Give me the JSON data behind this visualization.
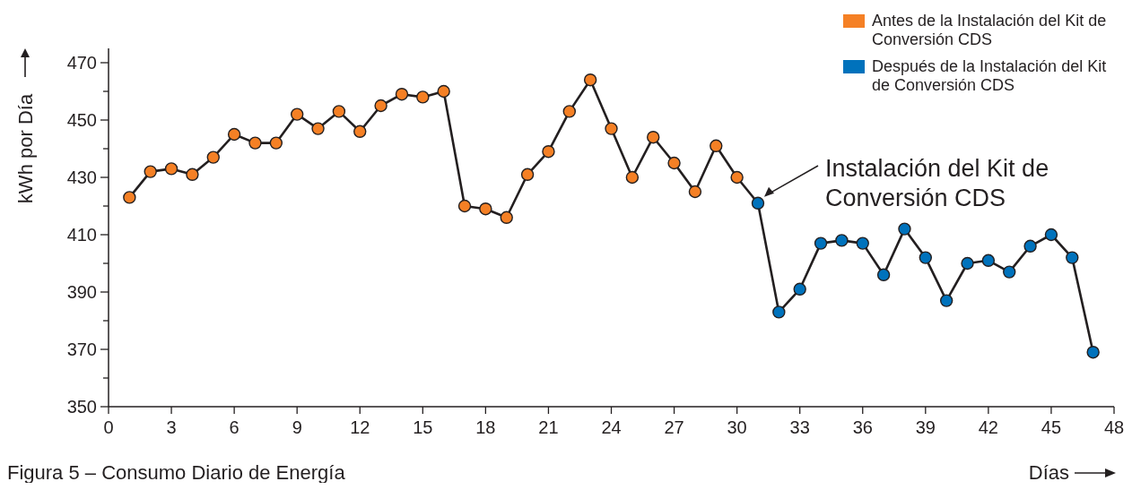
{
  "chart_data": {
    "type": "line",
    "title": "Figura 5 – Consumo Diario de Energía",
    "xlabel": "Días",
    "ylabel": "kWh por Día",
    "x": [
      1,
      2,
      3,
      4,
      5,
      6,
      7,
      8,
      9,
      10,
      11,
      12,
      13,
      14,
      15,
      16,
      17,
      18,
      19,
      20,
      21,
      22,
      23,
      24,
      25,
      26,
      27,
      28,
      29,
      30,
      31,
      32,
      33,
      34,
      35,
      36,
      37,
      38,
      39,
      40,
      41,
      42,
      43,
      44,
      45,
      46,
      47
    ],
    "series": [
      {
        "marker": "none",
        "color": "#231f20",
        "values": [
          423,
          432,
          433,
          431,
          437,
          445,
          442,
          442,
          452,
          447,
          453,
          446,
          455,
          459,
          458,
          460,
          420,
          419,
          416,
          431,
          439,
          453,
          464,
          447,
          430,
          444,
          435,
          425,
          441,
          430,
          421,
          383,
          391,
          407,
          408,
          407,
          396,
          412,
          402,
          387,
          400,
          401,
          397,
          406,
          410,
          402,
          369
        ]
      },
      {
        "type": "scatter",
        "name": "Antes de la Instalación del Kit de Conversión CDS",
        "color": "#f58025",
        "x": [
          1,
          2,
          3,
          4,
          5,
          6,
          7,
          8,
          9,
          10,
          11,
          12,
          13,
          14,
          15,
          16,
          17,
          18,
          19,
          20,
          21,
          22,
          23,
          24,
          25,
          26,
          27,
          28,
          29,
          30
        ],
        "values": [
          423,
          432,
          433,
          431,
          437,
          445,
          442,
          442,
          452,
          447,
          453,
          446,
          455,
          459,
          458,
          460,
          420,
          419,
          416,
          431,
          439,
          453,
          464,
          447,
          430,
          444,
          435,
          425,
          441,
          430
        ]
      },
      {
        "type": "scatter",
        "name": "Después de la Instalación del Kit de Conversión CDS",
        "color": "#0072bc",
        "x": [
          31,
          32,
          33,
          34,
          35,
          36,
          37,
          38,
          39,
          40,
          41,
          42,
          43,
          44,
          45,
          46,
          47
        ],
        "values": [
          421,
          383,
          391,
          407,
          408,
          407,
          396,
          412,
          402,
          387,
          400,
          401,
          397,
          406,
          410,
          402,
          369
        ]
      }
    ],
    "marker": "circle",
    "legend": "top right",
    "grid": false,
    "xlim": [
      0,
      48
    ],
    "xticks": [
      0,
      3,
      6,
      9,
      12,
      15,
      18,
      21,
      24,
      27,
      30,
      33,
      36,
      39,
      42,
      45,
      48
    ],
    "ylim": [
      350,
      475
    ],
    "yticks": [
      350,
      {
        "value": 360,
        "label": null
      },
      370,
      {
        "value": 380,
        "label": null
      },
      390,
      {
        "value": 400,
        "label": null
      },
      410,
      {
        "value": 420,
        "label": null
      },
      430,
      {
        "value": 440,
        "label": null
      },
      450,
      {
        "value": 460,
        "label": null
      },
      470
    ],
    "annotations": [
      {
        "text": "Instalación del Kit de Conversión CDS",
        "x": 31,
        "y": 421
      }
    ]
  }
}
